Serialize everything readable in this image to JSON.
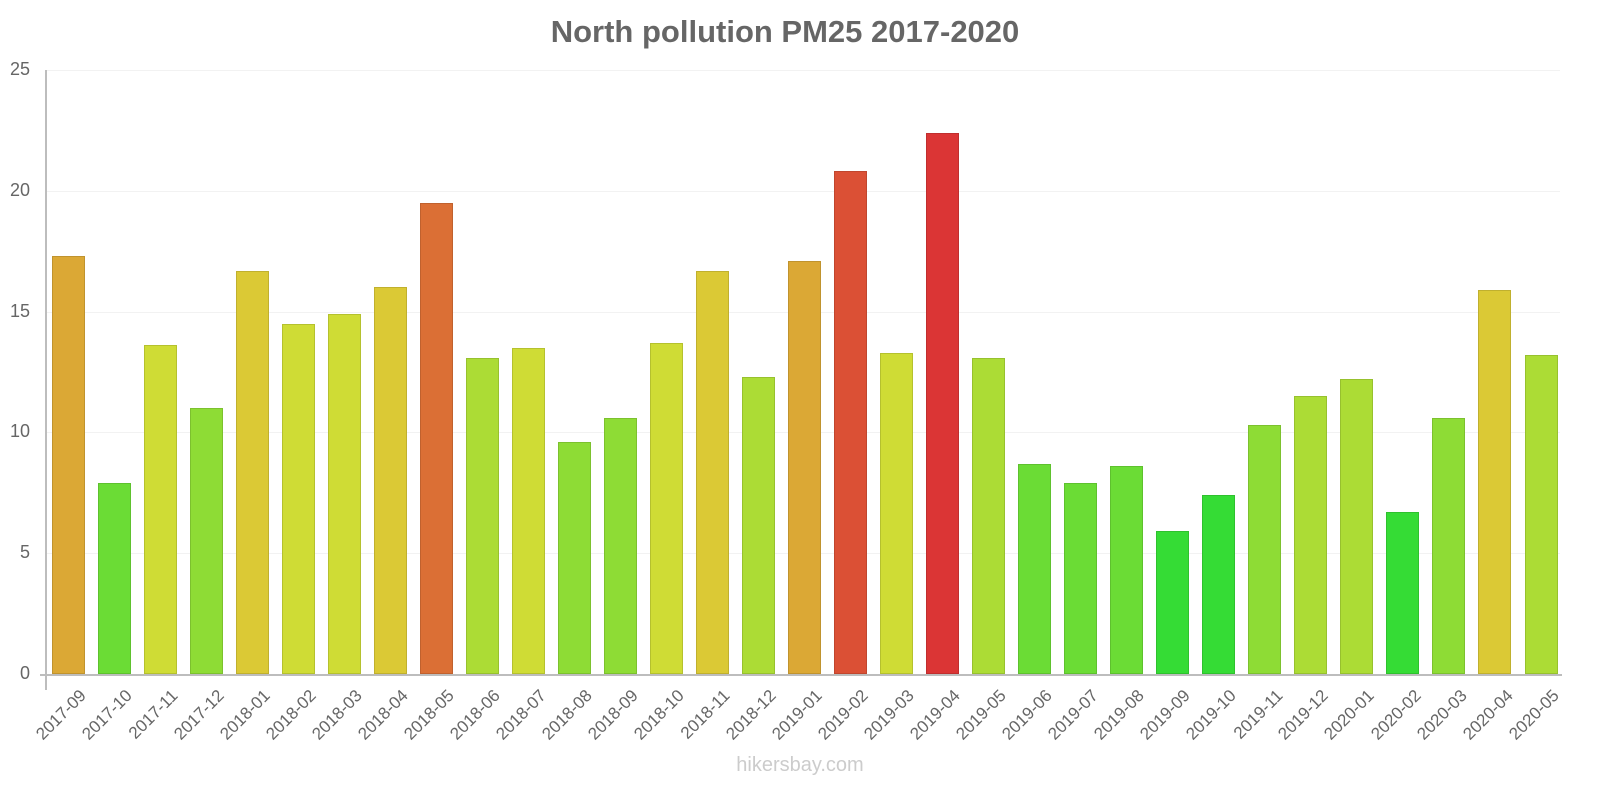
{
  "chart_data": {
    "type": "bar",
    "title": "North pollution PM25 2017-2020",
    "xlabel": "",
    "ylabel": "",
    "ylim": [
      0,
      25
    ],
    "yticks": [
      0,
      5,
      10,
      15,
      20,
      25
    ],
    "grid": true,
    "legend": null,
    "categories": [
      "2017-09",
      "2017-10",
      "2017-11",
      "2017-12",
      "2018-01",
      "2018-02",
      "2018-03",
      "2018-04",
      "2018-05",
      "2018-06",
      "2018-07",
      "2018-08",
      "2018-09",
      "2018-10",
      "2018-11",
      "2018-12",
      "2019-01",
      "2019-02",
      "2019-03",
      "2019-04",
      "2019-05",
      "2019-06",
      "2019-07",
      "2019-08",
      "2019-09",
      "2019-10",
      "2019-11",
      "2019-12",
      "2020-01",
      "2020-02",
      "2020-03",
      "2020-04",
      "2020-05"
    ],
    "values": [
      17.3,
      7.9,
      13.6,
      11.0,
      16.7,
      14.5,
      14.9,
      16.0,
      19.5,
      13.1,
      13.5,
      9.6,
      10.6,
      13.7,
      16.7,
      12.3,
      17.1,
      20.8,
      13.3,
      22.4,
      13.1,
      8.7,
      7.9,
      8.6,
      5.9,
      7.4,
      10.3,
      11.5,
      12.2,
      6.7,
      10.6,
      15.9,
      13.2
    ],
    "colors": [
      "#dba835",
      "#6bdc35",
      "#cfdc35",
      "#8edc35",
      "#dbc935",
      "#cfdc35",
      "#cfdc35",
      "#dbc935",
      "#db6f35",
      "#acdc35",
      "#cfdc35",
      "#8edc35",
      "#8edc35",
      "#cfdc35",
      "#dbc935",
      "#acdc35",
      "#dba835",
      "#db5035",
      "#cfdc35",
      "#db3535",
      "#acdc35",
      "#6bdc35",
      "#6bdc35",
      "#6bdc35",
      "#35dc35",
      "#35dc35",
      "#8edc35",
      "#acdc35",
      "#acdc35",
      "#35dc35",
      "#8edc35",
      "#dbc935",
      "#acdc35"
    ]
  },
  "watermark": "hikersbay.com"
}
